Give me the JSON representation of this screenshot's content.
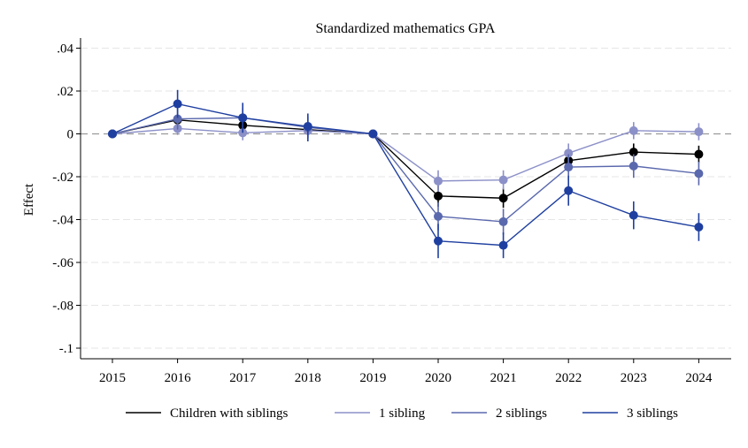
{
  "chart_data": {
    "type": "line",
    "title": "Standardized mathematics GPA",
    "xlabel": "",
    "ylabel": "Effect",
    "x": [
      "2015",
      "2016",
      "2017",
      "2018",
      "2019",
      "2020",
      "2021",
      "2022",
      "2023",
      "2024"
    ],
    "ylim": [
      -0.105,
      0.045
    ],
    "yticks": [
      0.04,
      0.02,
      0,
      -0.02,
      -0.04,
      -0.06,
      -0.08,
      -0.1
    ],
    "ytick_labels": [
      ".04",
      ".02",
      "0",
      "-.02",
      "-.04",
      "-.06",
      "-.08",
      "-.1"
    ],
    "grid": true,
    "reference_line": 0,
    "legend_position": "bottom",
    "series": [
      {
        "name": "Children with siblings",
        "color": "#000000",
        "values": [
          0,
          0.0065,
          0.004,
          0.002,
          0,
          -0.029,
          -0.03,
          -0.0125,
          -0.0085,
          -0.0095
        ],
        "ci_low": [
          0,
          0.0045,
          0.0015,
          0.0,
          0,
          -0.034,
          -0.0345,
          -0.017,
          -0.0125,
          -0.0135
        ],
        "ci_high": [
          0,
          0.0085,
          0.0065,
          0.004,
          0,
          -0.024,
          -0.0255,
          -0.008,
          -0.0045,
          -0.0055
        ]
      },
      {
        "name": "1 sibling",
        "color": "#8c90c8",
        "values": [
          0,
          0.0025,
          0.0005,
          0.0015,
          0,
          -0.022,
          -0.0215,
          -0.009,
          0.0015,
          0.001
        ],
        "ci_low": [
          0,
          -0.0005,
          -0.003,
          -0.002,
          0,
          -0.027,
          -0.026,
          -0.0135,
          -0.0025,
          -0.003
        ],
        "ci_high": [
          0,
          0.0055,
          0.004,
          0.005,
          0,
          -0.017,
          -0.017,
          -0.0045,
          0.0055,
          0.005
        ]
      },
      {
        "name": "2 siblings",
        "color": "#5a68ad",
        "values": [
          0,
          0.007,
          0.0075,
          0.003,
          0,
          -0.0385,
          -0.041,
          -0.0155,
          -0.015,
          -0.0185
        ],
        "ci_low": [
          0,
          0.002,
          0.003,
          -0.002,
          0,
          -0.045,
          -0.047,
          -0.0215,
          -0.0205,
          -0.024
        ],
        "ci_high": [
          0,
          0.012,
          0.012,
          0.008,
          0,
          -0.032,
          -0.035,
          -0.0095,
          -0.0095,
          -0.013
        ]
      },
      {
        "name": "3 siblings",
        "color": "#1f3fa0",
        "values": [
          0,
          0.014,
          0.0075,
          0.0035,
          0,
          -0.05,
          -0.052,
          -0.0265,
          -0.038,
          -0.0435
        ],
        "ci_low": [
          0,
          0.0075,
          0.0005,
          -0.0035,
          0,
          -0.058,
          -0.058,
          -0.0335,
          -0.0445,
          -0.05
        ],
        "ci_high": [
          0,
          0.0205,
          0.0145,
          0.0095,
          0,
          -0.042,
          -0.046,
          -0.0195,
          -0.0315,
          -0.037
        ]
      }
    ]
  }
}
